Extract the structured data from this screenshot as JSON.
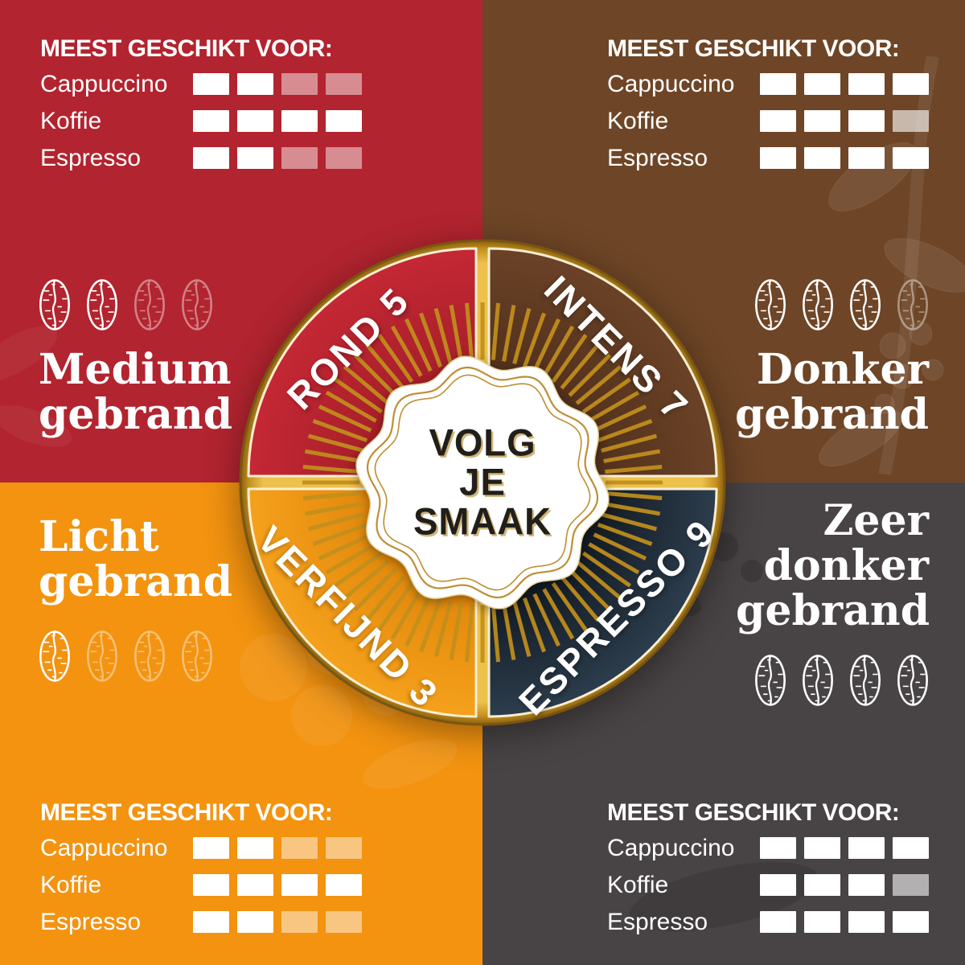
{
  "palette": {
    "gold": "#C28F1D",
    "gold_bright": "#EDC14D",
    "gold_dark": "#7A5510",
    "cream_line": "#F8EFD2",
    "badge_ring": "#BC8F33",
    "badge_fill": "#FFFFFF",
    "center_text": "#221F1A"
  },
  "center": {
    "line1": "VOLG",
    "line2": "JE",
    "line3": "SMAAK"
  },
  "wheel": {
    "segments": [
      {
        "label": "ROND 5",
        "inner": "#A01C27",
        "outer": "#C42834"
      },
      {
        "label": "INTENS 7",
        "inner": "#4C2D19",
        "outer": "#6B4227"
      },
      {
        "label": "VERFIJND 3",
        "inner": "#DE8207",
        "outer": "#F5A11C"
      },
      {
        "label": "ESPRESSO 9",
        "inner": "#0C1218",
        "outer": "#2C3D4D"
      }
    ]
  },
  "quadrants": [
    {
      "id": "medium-gebrand",
      "title": "Medium gebrand",
      "bg": "#B2242F",
      "beans": {
        "filled": 2,
        "total": 4
      },
      "suitability": {
        "title": "MEEST GESCHIKT VOOR:",
        "rows": [
          {
            "label": "Cappuccino",
            "filled": 2,
            "total": 4
          },
          {
            "label": "Koffie",
            "filled": 4,
            "total": 4
          },
          {
            "label": "Espresso",
            "filled": 2,
            "total": 4
          }
        ]
      }
    },
    {
      "id": "donker-gebrand",
      "title": "Donker gebrand",
      "bg": "#6E4526",
      "beans": {
        "filled": 3,
        "total": 4
      },
      "suitability": {
        "title": "MEEST GESCHIKT VOOR:",
        "rows": [
          {
            "label": "Cappuccino",
            "filled": 4,
            "total": 4
          },
          {
            "label": "Koffie",
            "filled": 3,
            "total": 4
          },
          {
            "label": "Espresso",
            "filled": 4,
            "total": 4
          }
        ]
      }
    },
    {
      "id": "licht-gebrand",
      "title": "Licht gebrand",
      "bg": "#F39310",
      "beans": {
        "filled": 1,
        "total": 4
      },
      "suitability": {
        "title": "MEEST GESCHIKT VOOR:",
        "rows": [
          {
            "label": "Cappuccino",
            "filled": 2,
            "total": 4
          },
          {
            "label": "Koffie",
            "filled": 4,
            "total": 4
          },
          {
            "label": "Espresso",
            "filled": 2,
            "total": 4
          }
        ]
      }
    },
    {
      "id": "zeer-donker-gebrand",
      "title": "Zeer donker gebrand",
      "bg": "#484344",
      "beans": {
        "filled": 4,
        "total": 4
      },
      "suitability": {
        "title": "MEEST GESCHIKT VOOR:",
        "rows": [
          {
            "label": "Cappuccino",
            "filled": 4,
            "total": 4
          },
          {
            "label": "Koffie",
            "filled": 3,
            "total": 4
          },
          {
            "label": "Espresso",
            "filled": 4,
            "total": 4
          }
        ]
      }
    }
  ]
}
